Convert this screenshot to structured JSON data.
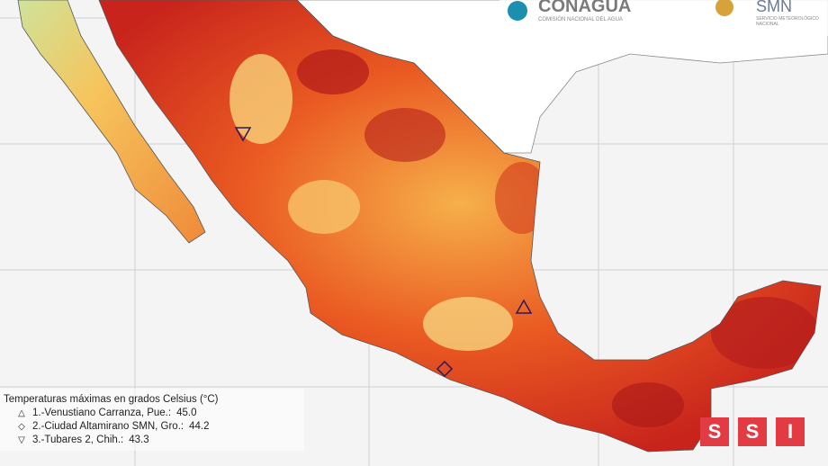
{
  "header": {
    "conagua": {
      "title": "CONAGUA",
      "subtitle": "COMISIÓN NACIONAL DEL AGUA"
    },
    "smn": {
      "title": "SMN",
      "subtitle": "SERVICIO METEOROLÓGICO NACIONAL"
    }
  },
  "legend": {
    "title": "Temperaturas máximas en grados Celsius (°C)",
    "entries": [
      {
        "label": "1.-Venustiano Carranza, Pue.:",
        "value": "45.0"
      },
      {
        "label": "2.-Ciudad Altamirano SMN, Gro.:",
        "value": "44.2"
      },
      {
        "label": "3.-Tubares 2, Chih.:",
        "value": "43.3"
      }
    ]
  },
  "watermark": [
    "S",
    "S",
    "I"
  ]
}
